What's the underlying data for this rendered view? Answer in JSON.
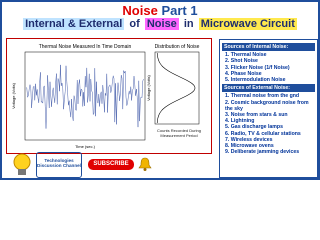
{
  "header": {
    "title_main": "Noise",
    "title_part": "Part 1",
    "subtitle": [
      "Internal & External",
      "of",
      "Noise",
      "in",
      "Microwave Circuit"
    ]
  },
  "figure": {
    "left_title": "Thermal Noise Measured In Time Domain",
    "y_label": "Voltage (Volts)",
    "x_label": "Time (sec.)",
    "right_title": "Distribution of Noise",
    "caption": "Counts Recorded During Measurement Period"
  },
  "internal": {
    "heading": "Sources of Internal Noise:",
    "items": [
      "1. Thermal Noise",
      "2. Shot Noise",
      "3. Flicker Noise (1/f Noise)",
      "4. Phase Noise",
      "5. Intermodulation Noise"
    ]
  },
  "external": {
    "heading": "Sources of External Noise:",
    "items": [
      "1. Thermal noise from the gnd",
      "2. Cosmic background noise from the sky",
      "3. Noise from stars & sun",
      "4. Lightning",
      "5. Gas discharge lamps",
      "6. Radio, TV & cellular stations",
      "7. Wireless devices",
      "8. Microwave ovens",
      "9. Deliberate jamming devices"
    ]
  },
  "channel": {
    "name": "Technologies Discussion Channel"
  },
  "subscribe": "SUBSCRIBE"
}
